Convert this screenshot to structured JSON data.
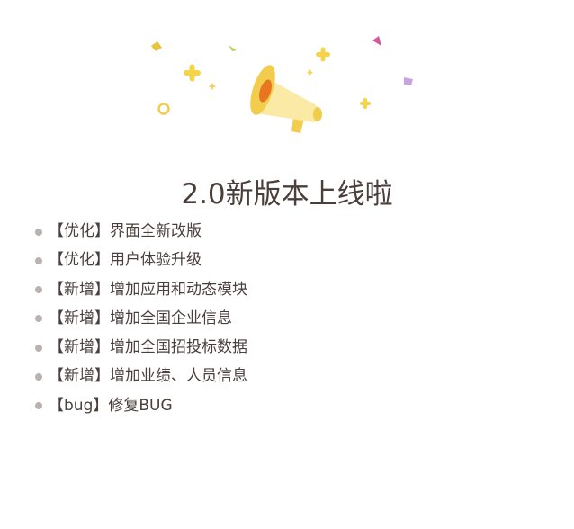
{
  "title": "2.0新版本上线啦",
  "items": [
    {
      "label": "【优化】界面全新改版"
    },
    {
      "label": "【优化】用户体验升级"
    },
    {
      "label": "【新增】增加应用和动态模块"
    },
    {
      "label": "【新增】增加全国企业信息"
    },
    {
      "label": "【新增】增加全国招投标数据"
    },
    {
      "label": "【新增】增加业绩、人员信息"
    },
    {
      "label": "【bug】修复BUG"
    }
  ],
  "illustration": {
    "icon": "megaphone-icon",
    "colors": {
      "megaphone_body": "#fbe9a6",
      "megaphone_rim": "#f2cc4d",
      "megaphone_inner": "#e8751f",
      "confetti_yellow": "#f5d44a",
      "confetti_pink": "#d9559c",
      "confetti_purple": "#c9a3e0",
      "confetti_green": "#b8d45a"
    }
  },
  "colors": {
    "text": "#4a3f3a",
    "bullet": "#b8b2b0",
    "background": "#ffffff"
  }
}
